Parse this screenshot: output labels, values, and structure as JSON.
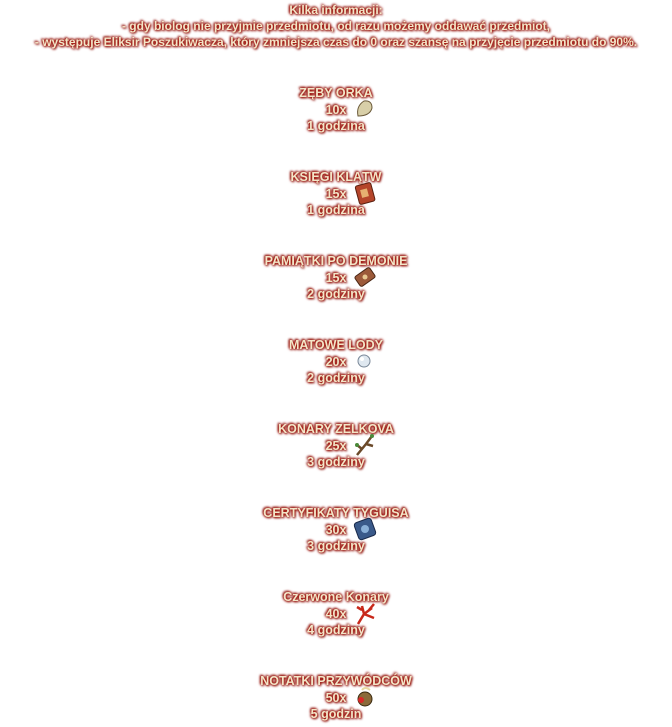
{
  "header": {
    "title": "Kilka informacji:",
    "lines": [
      "- gdy biolog nie przyjmie przedmiotu, od razu możemy oddawać przedmiot,",
      "- występuje Eliksir Poszukiwacza, który zmniejsza czas do 0 oraz szansę na przyjęcie przedmiotu do 90%."
    ]
  },
  "items": [
    {
      "name": "ZĘBY ORKA",
      "count": "10x",
      "time": "1 godzina"
    },
    {
      "name": "KSIĘGI KLĄTW",
      "count": "15x",
      "time": "1 godzina"
    },
    {
      "name": "PAMIĄTKI PO DEMONIE",
      "count": "15x",
      "time": "2 godziny"
    },
    {
      "name": "MATOWE LODY",
      "count": "20x",
      "time": "2 godziny"
    },
    {
      "name": "KONARY ZELKOVA",
      "count": "25x",
      "time": "3 godziny"
    },
    {
      "name": "CERTYFIKATY TYGUISA",
      "count": "30x",
      "time": "3 godziny"
    },
    {
      "name": "Czerwone Konary",
      "count": "40x",
      "time": "4 godziny"
    },
    {
      "name": "NOTATKI PRZYWÓDCÓW",
      "count": "50x",
      "time": "5 godzin"
    }
  ]
}
